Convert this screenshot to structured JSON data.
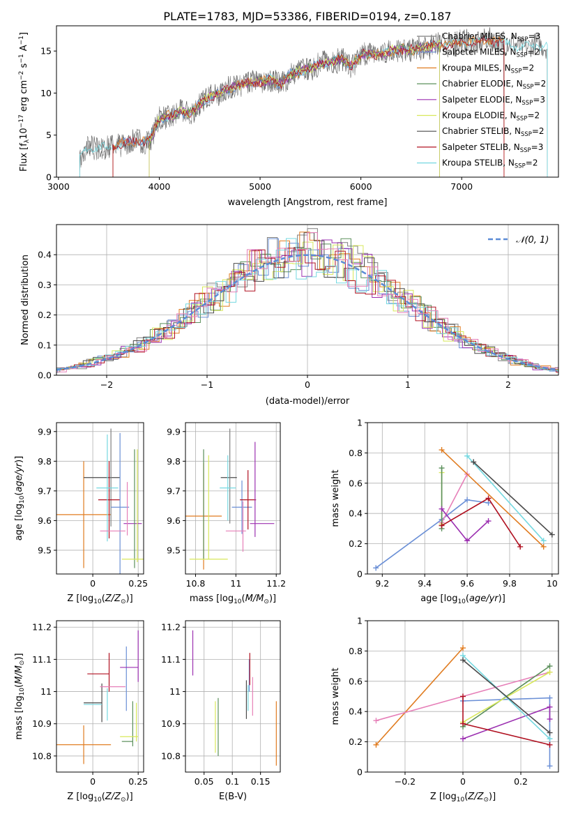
{
  "figure_title": "PLATE=1783, MJD=53386, FIBERID=0194, z=0.187",
  "colors": {
    "Chabrier MILES": "#7f7f7f",
    "Salpeter MILES": "#6a8fd6",
    "Kroupa MILES": "#e07b1f",
    "Chabrier ELODIE": "#5a8f5a",
    "Salpeter ELODIE": "#9b2fb0",
    "Kroupa ELODIE": "#d8e85a",
    "Chabrier STELIB": "#4a4a4a",
    "Salpeter STELIB": "#b01020",
    "Kroupa STELIB": "#74d8e0",
    "pink": "#e67fb8",
    "gauss": "#5b8bd6"
  },
  "spectrum_legend": [
    {
      "name": "Chabrier MILES",
      "sub": "SSP",
      "n": "3"
    },
    {
      "name": "Salpeter MILES",
      "sub": "SSP",
      "n": "2"
    },
    {
      "name": "Kroupa MILES",
      "sub": "SSP",
      "n": "2"
    },
    {
      "name": "Chabrier ELODIE",
      "sub": "SSP",
      "n": "2"
    },
    {
      "name": "Salpeter ELODIE",
      "sub": "SSP",
      "n": "3"
    },
    {
      "name": "Kroupa ELODIE",
      "sub": "SSP",
      "n": "2"
    },
    {
      "name": "Chabrier STELIB",
      "sub": "SSP",
      "n": "2"
    },
    {
      "name": "Salpeter STELIB",
      "sub": "SSP",
      "n": "3"
    },
    {
      "name": "Kroupa STELIB",
      "sub": "SSP",
      "n": "2"
    }
  ],
  "chart_data": [
    {
      "id": "spectrum",
      "type": "line",
      "xlabel": "wavelength [Angstrom, rest frame]",
      "ylabel": "Flux [f_λ10^-17 erg cm^-2 s^-1 A^-1]",
      "xlim": [
        2980,
        7960
      ],
      "ylim": [
        0,
        18
      ],
      "xticks": [
        3000,
        4000,
        5000,
        6000,
        7000
      ],
      "yticks": [
        0,
        5,
        10,
        15
      ],
      "grid": false,
      "legend": "upper right",
      "envelope": [
        [
          3210,
          2.2
        ],
        [
          3300,
          3.5
        ],
        [
          3400,
          3.6
        ],
        [
          3500,
          3.4
        ],
        [
          3600,
          4.0
        ],
        [
          3700,
          4.1
        ],
        [
          3800,
          4.3
        ],
        [
          3900,
          4.4
        ],
        [
          3950,
          5.5
        ],
        [
          4000,
          6.9
        ],
        [
          4100,
          7.3
        ],
        [
          4200,
          7.7
        ],
        [
          4300,
          7.6
        ],
        [
          4400,
          8.6
        ],
        [
          4500,
          9.6
        ],
        [
          4600,
          10.0
        ],
        [
          4700,
          10.5
        ],
        [
          4800,
          11.0
        ],
        [
          4900,
          11.2
        ],
        [
          5000,
          11.3
        ],
        [
          5100,
          11.6
        ],
        [
          5200,
          11.0
        ],
        [
          5300,
          12.2
        ],
        [
          5400,
          12.6
        ],
        [
          5500,
          13.0
        ],
        [
          5600,
          13.4
        ],
        [
          5700,
          13.7
        ],
        [
          5800,
          14.1
        ],
        [
          5900,
          13.2
        ],
        [
          6000,
          14.5
        ],
        [
          6100,
          14.7
        ],
        [
          6200,
          14.6
        ],
        [
          6300,
          15.0
        ],
        [
          6400,
          15.2
        ],
        [
          6500,
          15.1
        ],
        [
          6600,
          15.3
        ],
        [
          6700,
          15.6
        ],
        [
          6800,
          15.8
        ],
        [
          6900,
          15.9
        ],
        [
          7000,
          16.0
        ],
        [
          7100,
          16.1
        ],
        [
          7200,
          16.2
        ],
        [
          7300,
          16.2
        ],
        [
          7400,
          16.0
        ],
        [
          7600,
          15.5
        ],
        [
          7800,
          15.7
        ]
      ],
      "series_ranges": {
        "Chabrier MILES": [
          3210,
          7420
        ],
        "Salpeter MILES": [
          3540,
          6780
        ],
        "Kroupa MILES": [
          3540,
          7420
        ],
        "Chabrier ELODIE": [
          3900,
          6780
        ],
        "Salpeter ELODIE": [
          3900,
          6780
        ],
        "Kroupa ELODIE": [
          3900,
          6780
        ],
        "Chabrier STELIB": [
          3210,
          7850
        ],
        "Salpeter STELIB": [
          3540,
          7420
        ],
        "Kroupa STELIB": [
          3210,
          7850
        ]
      }
    },
    {
      "id": "residuals",
      "type": "histogram",
      "xlabel": "(data-model)/error",
      "ylabel": "Normed distribution",
      "xlim": [
        -2.5,
        2.5
      ],
      "ylim": [
        0,
        0.5
      ],
      "xticks": [
        -2,
        -1,
        0,
        1,
        2
      ],
      "yticks": [
        0.0,
        0.1,
        0.2,
        0.3,
        0.4
      ],
      "grid": true,
      "legend": "upper right",
      "gauss_label": "N(0,1)"
    },
    {
      "id": "age_vs_Z",
      "type": "errorbar",
      "xlabel": "Z [log10(Z/Z⊙)]",
      "ylabel": "age [log10(age/yr)]",
      "xlim": [
        -0.2,
        0.28
      ],
      "ylim": [
        9.42,
        9.93
      ],
      "xticks": [
        0.0,
        0.25
      ],
      "yticks": [
        9.5,
        9.6,
        9.7,
        9.8,
        9.9
      ],
      "grid": true,
      "points": [
        {
          "series": "Kroupa MILES",
          "x": -0.05,
          "xerr": 0.15,
          "y": 9.62,
          "yerr": 0.18
        },
        {
          "series": "Chabrier STELIB",
          "x": 0.05,
          "xerr": 0.1,
          "y": 9.745,
          "yerr": 0.0
        },
        {
          "series": "Chabrier MILES",
          "x": 0.1,
          "xerr": 0.0,
          "y": 9.745,
          "yerr": 0.165
        },
        {
          "series": "Salpeter STELIB",
          "x": 0.09,
          "xerr": 0.06,
          "y": 9.67,
          "yerr": 0.13
        },
        {
          "series": "Kroupa STELIB",
          "x": 0.08,
          "xerr": 0.06,
          "y": 9.71,
          "yerr": 0.18
        },
        {
          "series": "Salpeter MILES",
          "x": 0.15,
          "xerr": 0.05,
          "y": 9.645,
          "yerr": 0.25
        },
        {
          "series": "Salpeter ELODIE",
          "x": 0.22,
          "xerr": 0.05,
          "y": 9.59,
          "yerr": 0.0
        },
        {
          "series": "pink",
          "x": 0.11,
          "xerr": 0.07,
          "y": 9.565,
          "yerr": 0.0
        },
        {
          "series": "pink",
          "x": 0.19,
          "xerr": 0.0,
          "y": 9.64,
          "yerr": 0.09
        },
        {
          "series": "Chabrier ELODIE",
          "x": 0.23,
          "xerr": 0.0,
          "y": 9.64,
          "yerr": 0.2
        },
        {
          "series": "Kroupa ELODIE",
          "x": 0.22,
          "xerr": 0.06,
          "y": 9.47,
          "yerr": 0.0
        },
        {
          "series": "Kroupa ELODIE",
          "x": 0.245,
          "xerr": 0.0,
          "y": 9.65,
          "yerr": 0.19
        }
      ]
    },
    {
      "id": "age_vs_mass",
      "type": "errorbar",
      "xlabel": "mass [log10(M/M⊙)]",
      "ylabel": "",
      "xlim": [
        10.75,
        11.22
      ],
      "ylim": [
        9.42,
        9.93
      ],
      "xticks": [
        10.8,
        11.0,
        11.2
      ],
      "yticks": [
        9.5,
        9.6,
        9.7,
        9.8,
        9.9
      ],
      "grid": true,
      "points": [
        {
          "series": "Kroupa MILES",
          "x": 10.84,
          "xerr": 0.09,
          "y": 9.615,
          "yerr": 0.18
        },
        {
          "series": "Chabrier ELODIE",
          "x": 10.84,
          "xerr": 0.0,
          "y": 9.655,
          "yerr": 0.185
        },
        {
          "series": "Kroupa ELODIE",
          "x": 10.865,
          "xerr": 0.0,
          "y": 9.645,
          "yerr": 0.175
        },
        {
          "series": "Kroupa ELODIE",
          "x": 10.865,
          "xerr": 0.095,
          "y": 9.47,
          "yerr": 0.0
        },
        {
          "series": "Chabrier STELIB",
          "x": 10.965,
          "xerr": 0.04,
          "y": 9.745,
          "yerr": 0.0
        },
        {
          "series": "Chabrier MILES",
          "x": 10.97,
          "xerr": 0.0,
          "y": 9.75,
          "yerr": 0.16
        },
        {
          "series": "Kroupa STELIB",
          "x": 10.96,
          "xerr": 0.04,
          "y": 9.71,
          "yerr": 0.11
        },
        {
          "series": "Salpeter MILES",
          "x": 11.03,
          "xerr": 0.05,
          "y": 9.645,
          "yerr": 0.09
        },
        {
          "series": "Salpeter STELIB",
          "x": 11.06,
          "xerr": 0.04,
          "y": 9.67,
          "yerr": 0.1
        },
        {
          "series": "Salpeter ELODIE",
          "x": 11.13,
          "xerr": 0.06,
          "y": 9.59,
          "yerr": 0.0
        },
        {
          "series": "Salpeter ELODIE",
          "x": 11.095,
          "xerr": 0.0,
          "y": 9.705,
          "yerr": 0.16
        },
        {
          "series": "pink",
          "x": 11.0,
          "xerr": 0.05,
          "y": 9.565,
          "yerr": 0.0
        },
        {
          "series": "pink",
          "x": 11.035,
          "xerr": 0.0,
          "y": 9.58,
          "yerr": 0.085
        }
      ]
    },
    {
      "id": "weight_vs_age",
      "type": "line",
      "xlabel": "age [log10(age/yr)]",
      "ylabel": "mass weight",
      "xlim": [
        9.13,
        10.03
      ],
      "ylim": [
        0.0,
        1.0
      ],
      "xticks": [
        9.2,
        9.4,
        9.6,
        9.8,
        10.0
      ],
      "yticks": [
        0.0,
        0.2,
        0.4,
        0.6,
        0.8,
        1.0
      ],
      "grid": true,
      "series": [
        {
          "name": "Salpeter MILES",
          "points": [
            [
              9.17,
              0.04
            ],
            [
              9.48,
              0.36
            ],
            [
              9.6,
              0.49
            ],
            [
              9.7,
              0.47
            ]
          ]
        },
        {
          "name": "pink",
          "points": [
            [
              9.48,
              0.34
            ],
            [
              9.6,
              0.66
            ]
          ]
        },
        {
          "name": "Kroupa ELODIE",
          "points": [
            [
              9.48,
              0.33
            ],
            [
              9.48,
              0.67
            ]
          ]
        },
        {
          "name": "Chabrier ELODIE",
          "points": [
            [
              9.48,
              0.3
            ],
            [
              9.48,
              0.7
            ]
          ]
        },
        {
          "name": "Salpeter ELODIE",
          "points": [
            [
              9.48,
              0.43
            ],
            [
              9.6,
              0.22
            ],
            [
              9.7,
              0.35
            ]
          ]
        },
        {
          "name": "Salpeter STELIB",
          "points": [
            [
              9.48,
              0.32
            ],
            [
              9.7,
              0.5
            ],
            [
              9.85,
              0.18
            ]
          ]
        },
        {
          "name": "Kroupa MILES",
          "points": [
            [
              9.48,
              0.82
            ],
            [
              9.96,
              0.18
            ]
          ]
        },
        {
          "name": "Kroupa STELIB",
          "points": [
            [
              9.6,
              0.78
            ],
            [
              9.96,
              0.22
            ]
          ]
        },
        {
          "name": "Chabrier STELIB",
          "points": [
            [
              9.63,
              0.74
            ],
            [
              10.0,
              0.26
            ]
          ]
        }
      ]
    },
    {
      "id": "mass_vs_Z",
      "type": "errorbar",
      "xlabel": "Z [log10(Z/Z⊙)]",
      "ylabel": "mass [log10(M/M⊙)]",
      "xlim": [
        -0.2,
        0.28
      ],
      "ylim": [
        10.75,
        11.22
      ],
      "xticks": [
        0.0,
        0.25
      ],
      "yticks": [
        10.8,
        10.9,
        11.0,
        11.1,
        11.2
      ],
      "grid": true,
      "points": [
        {
          "series": "Kroupa MILES",
          "x": -0.05,
          "xerr": 0.15,
          "y": 10.835,
          "yerr": 0.06
        },
        {
          "series": "Chabrier STELIB",
          "x": 0.0,
          "xerr": 0.05,
          "y": 10.965,
          "yerr": 0.0
        },
        {
          "series": "Chabrier STELIB",
          "x": 0.05,
          "xerr": 0.0,
          "y": 10.965,
          "yerr": 0.06
        },
        {
          "series": "Kroupa STELIB",
          "x": 0.0,
          "xerr": 0.05,
          "y": 10.96,
          "yerr": 0.0
        },
        {
          "series": "Kroupa STELIB",
          "x": 0.08,
          "xerr": 0.0,
          "y": 10.96,
          "yerr": 0.05
        },
        {
          "series": "Salpeter STELIB",
          "x": 0.03,
          "xerr": 0.06,
          "y": 11.055,
          "yerr": 0.0
        },
        {
          "series": "Salpeter STELIB",
          "x": 0.09,
          "xerr": 0.0,
          "y": 11.06,
          "yerr": 0.06
        },
        {
          "series": "pink",
          "x": 0.11,
          "xerr": 0.07,
          "y": 11.015,
          "yerr": 0.0
        },
        {
          "series": "Salpeter MILES",
          "x": 0.185,
          "xerr": 0.0,
          "y": 11.04,
          "yerr": 0.1
        },
        {
          "series": "Salpeter ELODIE",
          "x": 0.2,
          "xerr": 0.05,
          "y": 11.075,
          "yerr": 0.0
        },
        {
          "series": "Salpeter ELODIE",
          "x": 0.25,
          "xerr": 0.0,
          "y": 11.11,
          "yerr": 0.08
        },
        {
          "series": "Chabrier ELODIE",
          "x": 0.22,
          "xerr": 0.0,
          "y": 10.9,
          "yerr": 0.07
        },
        {
          "series": "Chabrier ELODIE",
          "x": 0.19,
          "xerr": 0.03,
          "y": 10.845,
          "yerr": 0.0
        },
        {
          "series": "Kroupa ELODIE",
          "x": 0.2,
          "xerr": 0.05,
          "y": 10.86,
          "yerr": 0.0
        },
        {
          "series": "Kroupa ELODIE",
          "x": 0.24,
          "xerr": 0.0,
          "y": 10.905,
          "yerr": 0.06
        }
      ]
    },
    {
      "id": "mass_vs_ebv",
      "type": "errorbar",
      "xlabel": "E(B-V)",
      "ylabel": "",
      "xlim": [
        0.017,
        0.185
      ],
      "ylim": [
        10.75,
        11.22
      ],
      "xticks": [
        0.05,
        0.1,
        0.15
      ],
      "yticks": [
        10.8,
        10.9,
        11.0,
        11.1,
        11.2
      ],
      "grid": true,
      "points": [
        {
          "series": "Salpeter ELODIE",
          "x": 0.03,
          "yerr": 0.07,
          "y": 11.12
        },
        {
          "series": "Kroupa ELODIE",
          "x": 0.07,
          "yerr": 0.08,
          "y": 10.89
        },
        {
          "series": "Chabrier ELODIE",
          "x": 0.075,
          "yerr": 0.09,
          "y": 10.89
        },
        {
          "series": "Chabrier STELIB",
          "x": 0.125,
          "yerr": 0.06,
          "y": 10.975
        },
        {
          "series": "Salpeter MILES",
          "x": 0.13,
          "yerr": 0.05,
          "y": 11.05
        },
        {
          "series": "Salpeter STELIB",
          "x": 0.131,
          "yerr": 0.05,
          "y": 11.07
        },
        {
          "series": "Kroupa STELIB",
          "x": 0.128,
          "yerr": 0.04,
          "y": 10.98
        },
        {
          "series": "pink",
          "x": 0.136,
          "yerr": 0.06,
          "y": 10.985
        },
        {
          "series": "Kroupa MILES",
          "x": 0.178,
          "yerr": 0.1,
          "y": 10.87
        }
      ]
    },
    {
      "id": "weight_vs_Z",
      "type": "line",
      "xlabel": "Z [log10(Z/Z⊙)]",
      "ylabel": "mass weight",
      "xlim": [
        -0.33,
        0.33
      ],
      "ylim": [
        0.0,
        1.0
      ],
      "xticks": [
        -0.2,
        0.0,
        0.2
      ],
      "yticks": [
        0.0,
        0.2,
        0.4,
        0.6,
        0.8,
        1.0
      ],
      "grid": true,
      "series": [
        {
          "name": "Kroupa MILES",
          "points": [
            [
              -0.3,
              0.18
            ],
            [
              0.0,
              0.82
            ]
          ]
        },
        {
          "name": "pink",
          "points": [
            [
              -0.3,
              0.34
            ],
            [
              0.3,
              0.66
            ]
          ]
        },
        {
          "name": "Salpeter MILES",
          "points": [
            [
              0.0,
              0.47
            ],
            [
              0.3,
              0.49
            ],
            [
              0.3,
              0.04
            ]
          ]
        },
        {
          "name": "Chabrier ELODIE",
          "points": [
            [
              0.0,
              0.3
            ],
            [
              0.3,
              0.7
            ]
          ]
        },
        {
          "name": "Kroupa ELODIE",
          "points": [
            [
              0.0,
              0.33
            ],
            [
              0.3,
              0.66
            ]
          ]
        },
        {
          "name": "Salpeter ELODIE",
          "points": [
            [
              0.0,
              0.22
            ],
            [
              0.3,
              0.43
            ],
            [
              0.3,
              0.35
            ]
          ]
        },
        {
          "name": "Salpeter STELIB",
          "points": [
            [
              0.0,
              0.5
            ],
            [
              0.0,
              0.32
            ],
            [
              0.3,
              0.18
            ]
          ]
        },
        {
          "name": "Kroupa STELIB",
          "points": [
            [
              0.0,
              0.77
            ],
            [
              0.3,
              0.22
            ]
          ]
        },
        {
          "name": "Chabrier STELIB",
          "points": [
            [
              0.0,
              0.74
            ],
            [
              0.3,
              0.26
            ]
          ]
        }
      ]
    }
  ]
}
